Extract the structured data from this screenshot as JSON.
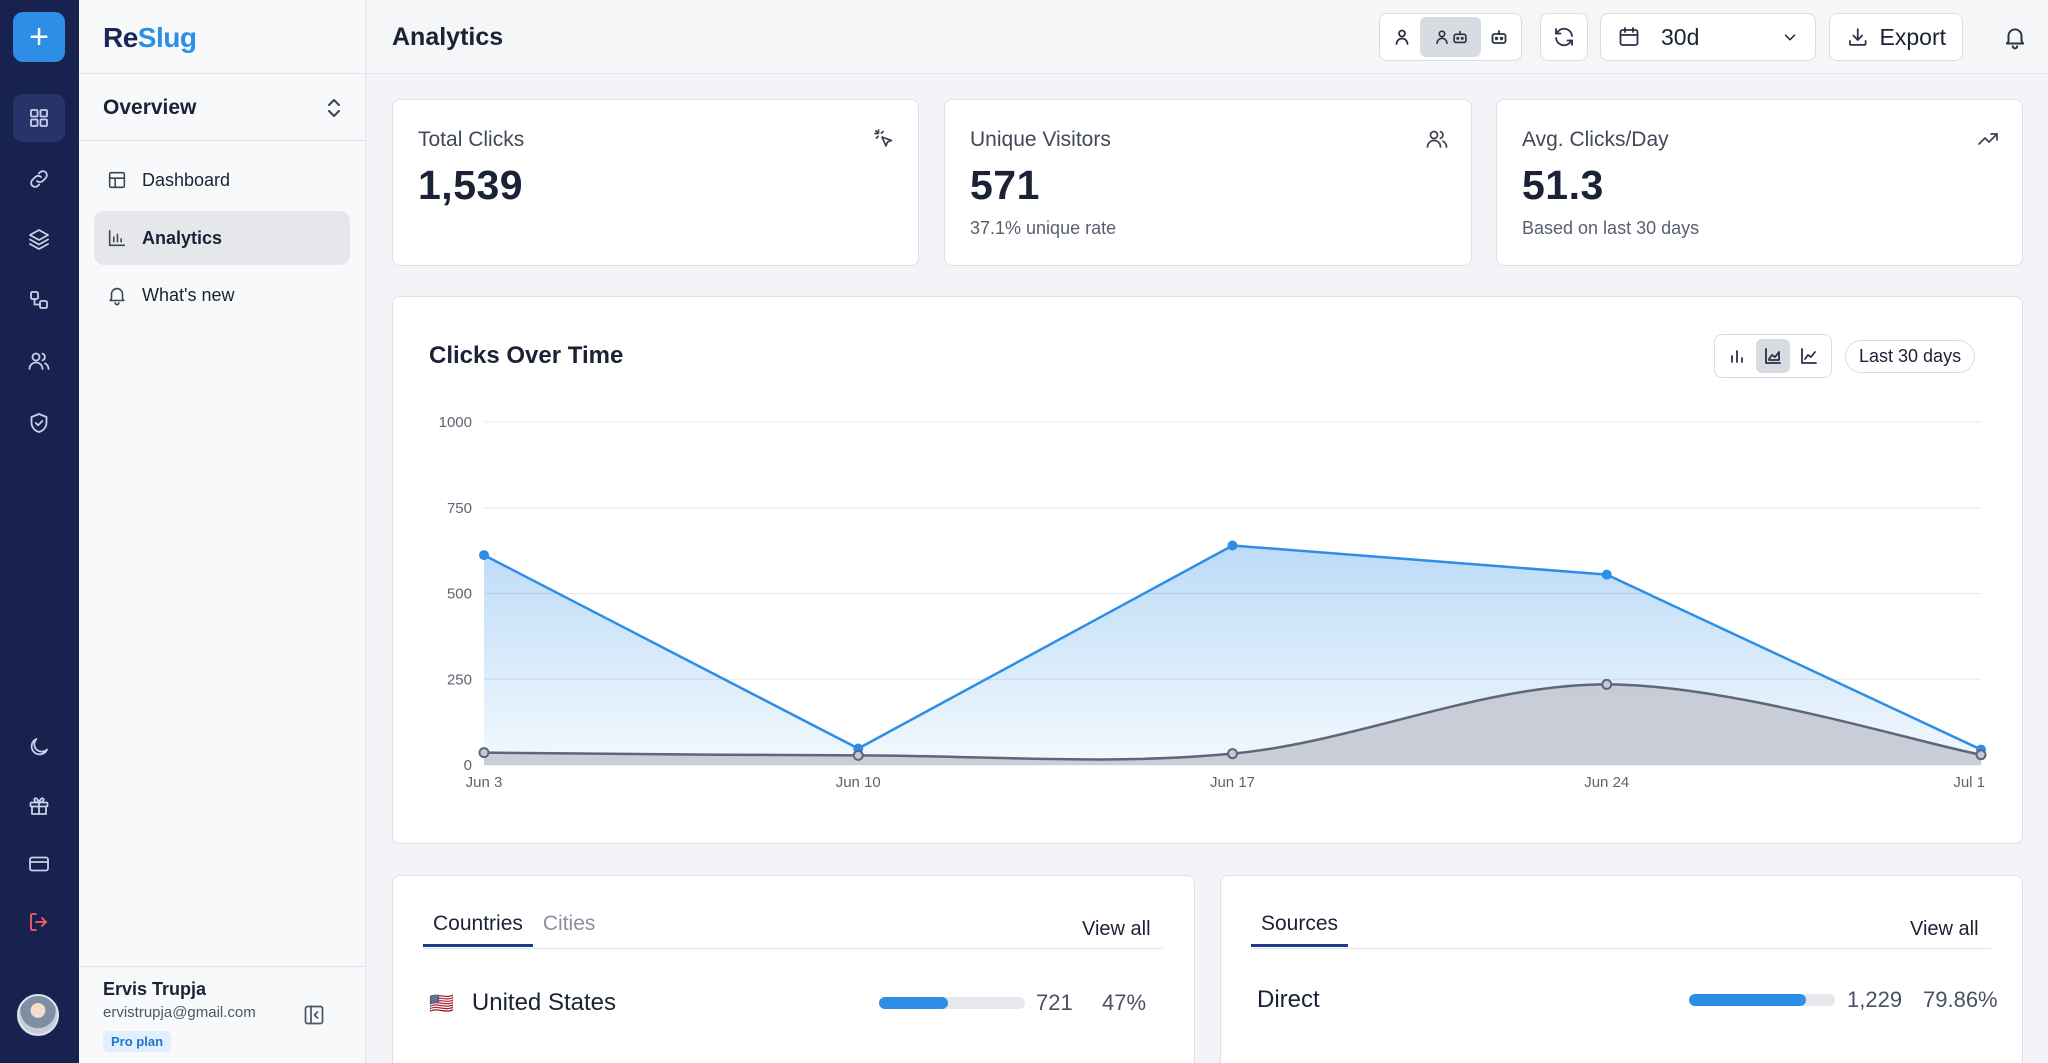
{
  "app": {
    "logo_re": "Re",
    "logo_slug": "Slug"
  },
  "rail": {
    "add_label": "+",
    "items": [
      {
        "icon": "grid-icon",
        "active": true
      },
      {
        "icon": "link-icon",
        "active": false
      },
      {
        "icon": "layers-icon",
        "active": false
      },
      {
        "icon": "shapes-icon",
        "active": false
      },
      {
        "icon": "users-icon",
        "active": false
      },
      {
        "icon": "shield-check-icon",
        "active": false
      },
      {
        "icon": "moon-icon",
        "active": false
      },
      {
        "icon": "gift-icon",
        "active": false
      },
      {
        "icon": "credit-card-icon",
        "active": false
      },
      {
        "icon": "logout-icon",
        "active": false
      }
    ]
  },
  "sidebar": {
    "workspace": "Overview",
    "items": [
      {
        "label": "Dashboard",
        "icon": "dashboard-icon",
        "active": false
      },
      {
        "label": "Analytics",
        "icon": "bar-chart-icon",
        "active": true
      },
      {
        "label": "What's new",
        "icon": "bell-icon",
        "active": false
      }
    ],
    "user": {
      "name": "Ervis Trupja",
      "email": "ervistrupja@gmail.com",
      "plan": "Pro plan"
    }
  },
  "header": {
    "title": "Analytics",
    "range": "30d",
    "export_label": "Export"
  },
  "stats": [
    {
      "label": "Total Clicks",
      "value": "1,539",
      "sub": "",
      "icon": "cursor-click-icon"
    },
    {
      "label": "Unique Visitors",
      "value": "571",
      "sub": "37.1% unique rate",
      "icon": "users-icon"
    },
    {
      "label": "Avg. Clicks/Day",
      "value": "51.3",
      "sub": "Based on last 30 days",
      "icon": "trending-up-icon"
    }
  ],
  "chart": {
    "title": "Clicks Over Time",
    "range_pill": "Last 30 days"
  },
  "chart_data": {
    "type": "area",
    "x": [
      "Jun 3",
      "Jun 10",
      "Jun 17",
      "Jun 24",
      "Jul 1"
    ],
    "y_ticks": [
      "0",
      "250",
      "500",
      "750",
      "1000"
    ],
    "ylim": [
      0,
      1000
    ],
    "grid": true,
    "series": [
      {
        "name": "",
        "color": "#2e8ee6",
        "values": [
          612,
          48,
          640,
          555,
          45
        ]
      },
      {
        "name": "",
        "color": "#5e6677",
        "values": [
          36,
          28,
          33,
          235,
          30
        ]
      }
    ]
  },
  "locations": {
    "tabs": [
      "Countries",
      "Cities"
    ],
    "view_all": "View all",
    "rows": [
      {
        "flag": "🇺🇸",
        "label": "United States",
        "count": "721",
        "percent": "47%",
        "share": 0.47
      }
    ]
  },
  "sources": {
    "tabs": [
      "Sources"
    ],
    "view_all": "View all",
    "rows": [
      {
        "label": "Direct",
        "count": "1,229",
        "percent": "79.86%",
        "share": 0.7986
      }
    ]
  }
}
